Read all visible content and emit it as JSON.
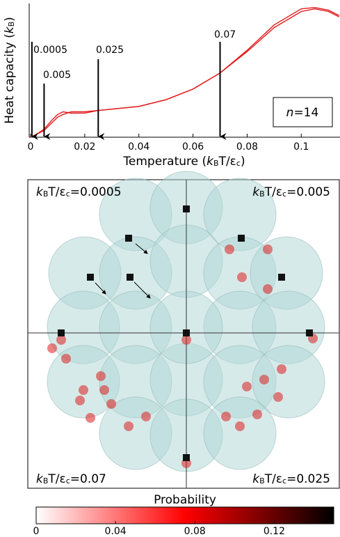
{
  "chart_data": [
    {
      "type": "line",
      "xlabel": [
        "Temperature (",
        "k",
        "B",
        "T/ε",
        "c",
        ")"
      ],
      "ylabel": [
        "Heat capacity (",
        "k",
        "B",
        ")"
      ],
      "x": [
        0,
        0.002,
        0.005,
        0.008,
        0.01,
        0.012,
        0.015,
        0.02,
        0.025,
        0.03,
        0.04,
        0.05,
        0.06,
        0.07,
        0.08,
        0.09,
        0.1,
        0.105,
        0.11,
        0.114
      ],
      "series": [
        {
          "color": "#e31a1c",
          "values": [
            0.0,
            0.02,
            0.06,
            0.13,
            0.17,
            0.19,
            0.18,
            0.18,
            0.2,
            0.21,
            0.23,
            0.28,
            0.36,
            0.48,
            0.64,
            0.82,
            0.94,
            0.96,
            0.94,
            0.9
          ]
        },
        {
          "color": "#e31a1c",
          "values": [
            0.0,
            0.02,
            0.05,
            0.11,
            0.15,
            0.17,
            0.19,
            0.19,
            0.2,
            0.21,
            0.23,
            0.28,
            0.36,
            0.48,
            0.65,
            0.84,
            0.96,
            0.97,
            0.95,
            0.91
          ]
        }
      ],
      "xlim": [
        -0.0005,
        0.1143
      ],
      "ylim": [
        0,
        1
      ],
      "xticks": [
        0,
        0.02,
        0.04,
        0.06,
        0.08,
        0.1
      ],
      "arrows": [
        0.0005,
        0.005,
        0.025,
        0.07
      ],
      "annotation": [
        "n",
        "=14"
      ]
    },
    {
      "type": "heatmap",
      "panel_labels": [
        [
          "k",
          "B",
          "T/ε",
          "c",
          "=0.0005"
        ],
        [
          "k",
          "B",
          "T/ε",
          "c",
          "=0.005"
        ],
        [
          "k",
          "B",
          "T/ε",
          "c",
          "=0.07"
        ],
        [
          "k",
          "B",
          "T/ε",
          "c",
          "=0.025"
        ]
      ],
      "colorbar": {
        "label": "Probability",
        "lim": [
          0,
          0.15
        ],
        "ticks": [
          0,
          0.04,
          0.08,
          0.12
        ],
        "colors": [
          "#ffffff",
          "#ff0000",
          "#000000"
        ]
      }
    }
  ]
}
